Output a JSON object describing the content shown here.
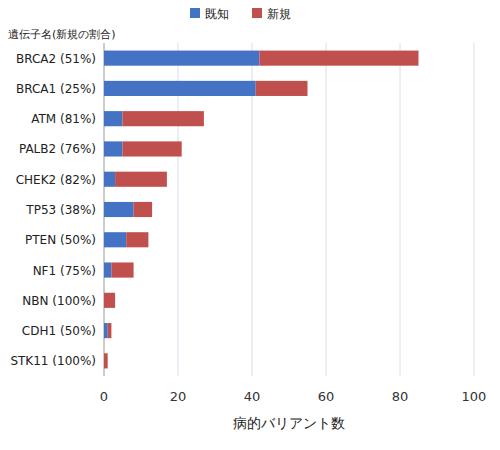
{
  "chart_data": {
    "type": "bar",
    "orientation": "horizontal",
    "stacked": true,
    "grid": true,
    "legend": "top",
    "y_label": "遺伝子名(新規の割合)",
    "x_label": "病的バリアント数",
    "categories": [
      "BRCA2 (51%)",
      "BRCA1 (25%)",
      "ATM (81%)",
      "PALB2 (76%)",
      "CHEK2 (82%)",
      "TP53 (38%)",
      "PTEN (50%)",
      "NF1 (75%)",
      "NBN (100%)",
      "CDH1 (50%)",
      "STK11 (100%)"
    ],
    "series": [
      {
        "name": "既知",
        "color": "#4472c4",
        "values": [
          42,
          41,
          5,
          5,
          3,
          8,
          6,
          2,
          0,
          1,
          0
        ]
      },
      {
        "name": "新規",
        "color": "#c0504d",
        "values": [
          43,
          14,
          22,
          16,
          14,
          5,
          6,
          6,
          3,
          1,
          1
        ]
      }
    ],
    "xlim": [
      0,
      100
    ],
    "xticks": [
      0,
      20,
      40,
      60,
      80,
      100
    ]
  }
}
